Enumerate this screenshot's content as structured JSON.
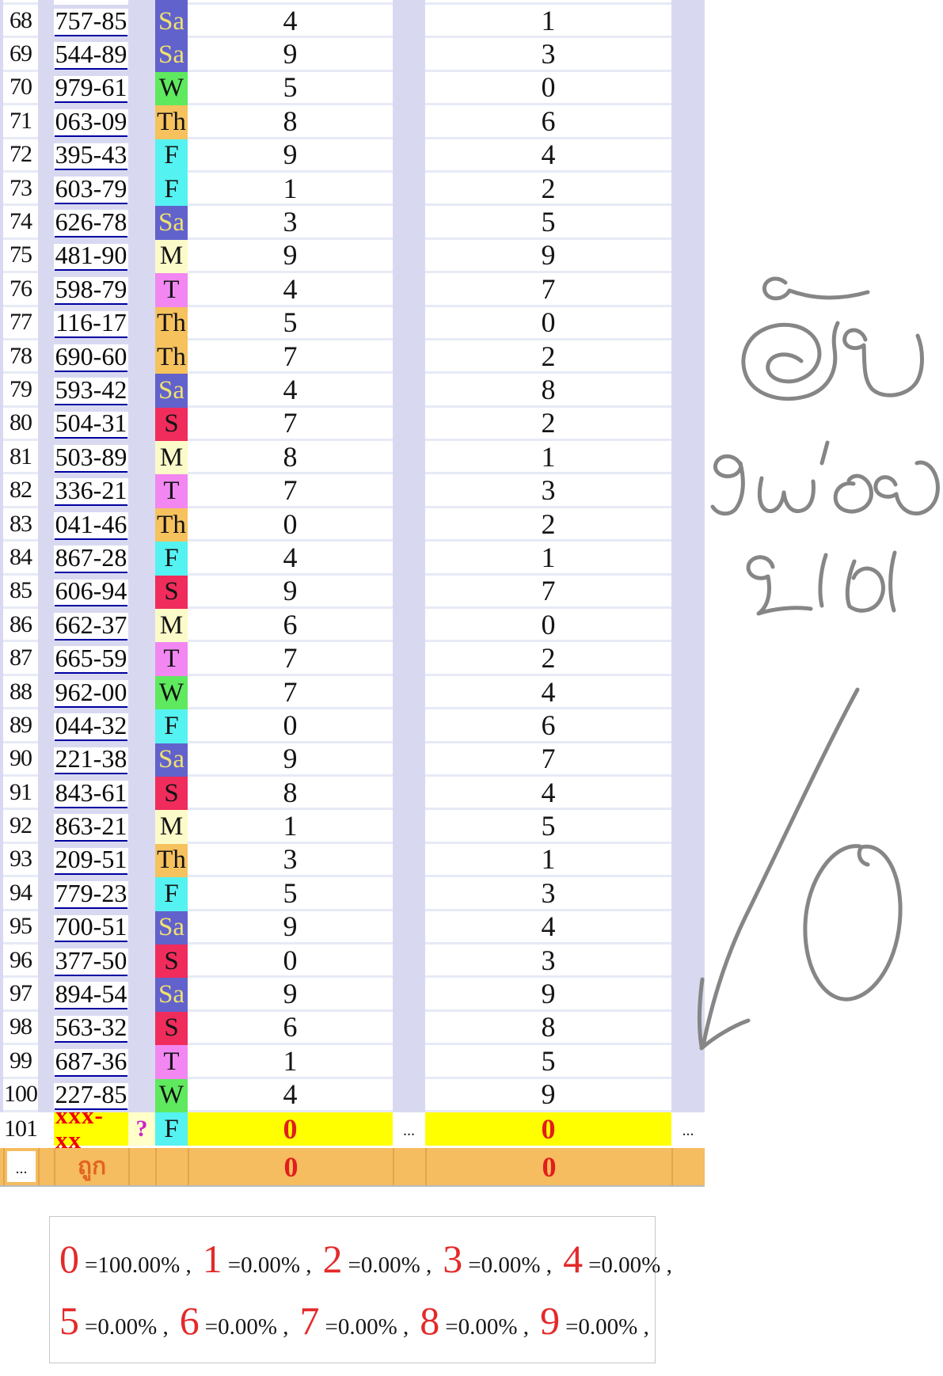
{
  "table": {
    "rows": [
      {
        "n": "68",
        "link": "757-85",
        "day": "Sa",
        "d1": "4",
        "d2": "1"
      },
      {
        "n": "69",
        "link": "544-89",
        "day": "Sa",
        "d1": "9",
        "d2": "3"
      },
      {
        "n": "70",
        "link": "979-61",
        "day": "W",
        "d1": "5",
        "d2": "0"
      },
      {
        "n": "71",
        "link": "063-09",
        "day": "Th",
        "d1": "8",
        "d2": "6"
      },
      {
        "n": "72",
        "link": "395-43",
        "day": "F",
        "d1": "9",
        "d2": "4"
      },
      {
        "n": "73",
        "link": "603-79",
        "day": "F",
        "d1": "1",
        "d2": "2"
      },
      {
        "n": "74",
        "link": "626-78",
        "day": "Sa",
        "d1": "3",
        "d2": "5"
      },
      {
        "n": "75",
        "link": "481-90",
        "day": "M",
        "d1": "9",
        "d2": "9"
      },
      {
        "n": "76",
        "link": "598-79",
        "day": "T",
        "d1": "4",
        "d2": "7"
      },
      {
        "n": "77",
        "link": "116-17",
        "day": "Th",
        "d1": "5",
        "d2": "0"
      },
      {
        "n": "78",
        "link": "690-60",
        "day": "Th",
        "d1": "7",
        "d2": "2"
      },
      {
        "n": "79",
        "link": "593-42",
        "day": "Sa",
        "d1": "4",
        "d2": "8"
      },
      {
        "n": "80",
        "link": "504-31",
        "day": "S",
        "d1": "7",
        "d2": "2"
      },
      {
        "n": "81",
        "link": "503-89",
        "day": "M",
        "d1": "8",
        "d2": "1"
      },
      {
        "n": "82",
        "link": "336-21",
        "day": "T",
        "d1": "7",
        "d2": "3"
      },
      {
        "n": "83",
        "link": "041-46",
        "day": "Th",
        "d1": "0",
        "d2": "2"
      },
      {
        "n": "84",
        "link": "867-28",
        "day": "F",
        "d1": "4",
        "d2": "1"
      },
      {
        "n": "85",
        "link": "606-94",
        "day": "S",
        "d1": "9",
        "d2": "7"
      },
      {
        "n": "86",
        "link": "662-37",
        "day": "M",
        "d1": "6",
        "d2": "0"
      },
      {
        "n": "87",
        "link": "665-59",
        "day": "T",
        "d1": "7",
        "d2": "2"
      },
      {
        "n": "88",
        "link": "962-00",
        "day": "W",
        "d1": "7",
        "d2": "4"
      },
      {
        "n": "89",
        "link": "044-32",
        "day": "F",
        "d1": "0",
        "d2": "6"
      },
      {
        "n": "90",
        "link": "221-38",
        "day": "Sa",
        "d1": "9",
        "d2": "7"
      },
      {
        "n": "91",
        "link": "843-61",
        "day": "S",
        "d1": "8",
        "d2": "4"
      },
      {
        "n": "92",
        "link": "863-21",
        "day": "M",
        "d1": "1",
        "d2": "5"
      },
      {
        "n": "93",
        "link": "209-51",
        "day": "Th",
        "d1": "3",
        "d2": "1"
      },
      {
        "n": "94",
        "link": "779-23",
        "day": "F",
        "d1": "5",
        "d2": "3"
      },
      {
        "n": "95",
        "link": "700-51",
        "day": "Sa",
        "d1": "9",
        "d2": "4"
      },
      {
        "n": "96",
        "link": "377-50",
        "day": "S",
        "d1": "0",
        "d2": "3"
      },
      {
        "n": "97",
        "link": "894-54",
        "day": "Sa",
        "d1": "9",
        "d2": "9"
      },
      {
        "n": "98",
        "link": "563-32",
        "day": "S",
        "d1": "6",
        "d2": "8"
      },
      {
        "n": "99",
        "link": "687-36",
        "day": "T",
        "d1": "1",
        "d2": "5"
      },
      {
        "n": "100",
        "link": "227-85",
        "day": "W",
        "d1": "4",
        "d2": "9"
      }
    ],
    "special_row": {
      "n": "101",
      "link": "xxx-xx",
      "question": "?",
      "day": "F",
      "d1": "0",
      "dots1": "...",
      "d2": "0",
      "dots2": "..."
    },
    "footer": {
      "dots": "...",
      "label": "ถูก",
      "d1": "0",
      "d2": "0"
    }
  },
  "legend": {
    "line1": [
      {
        "digit": "0",
        "text": "=100.00% ,"
      },
      {
        "digit": "1",
        "text": "=0.00% ,"
      },
      {
        "digit": "2",
        "text": "=0.00% ,"
      },
      {
        "digit": "3",
        "text": "=0.00% ,"
      },
      {
        "digit": "4",
        "text": "=0.00% ,"
      }
    ],
    "line2": [
      {
        "digit": "5",
        "text": "=0.00% ,"
      },
      {
        "digit": "6",
        "text": "=0.00% ,"
      },
      {
        "digit": "7",
        "text": "=0.00% ,"
      },
      {
        "digit": "8",
        "text": "=0.00% ,"
      },
      {
        "digit": "9",
        "text": "=0.00% ,"
      }
    ]
  },
  "handwriting": {
    "words": [
      "ตัย",
      "หน่อย",
      "ยห"
    ],
    "drawn_zero": "0",
    "stroke_color": "#868686"
  },
  "colors": {
    "lavender": "#D8D9F1",
    "separator": "#E7EAF6",
    "highlight_yellow": "#FFFF00",
    "footer_orange": "#F5BC60",
    "red": "#E21D1D",
    "legend_red": "#E32A2A",
    "link_underline": "#0000A0",
    "question_magenta": "#CB24CB",
    "footer_label": "#E2641E",
    "day": {
      "Sa": {
        "bg": "#6262CC",
        "fg": "#EFE26E"
      },
      "W": {
        "bg": "#5FE95F",
        "fg": "#141414"
      },
      "Th": {
        "bg": "#F6C25E",
        "fg": "#141414"
      },
      "F": {
        "bg": "#55F2F2",
        "fg": "#141414"
      },
      "M": {
        "bg": "#FBFBC9",
        "fg": "#141414"
      },
      "T": {
        "bg": "#F287F2",
        "fg": "#141414"
      },
      "S": {
        "bg": "#EF2C5C",
        "fg": "#141414"
      }
    }
  }
}
